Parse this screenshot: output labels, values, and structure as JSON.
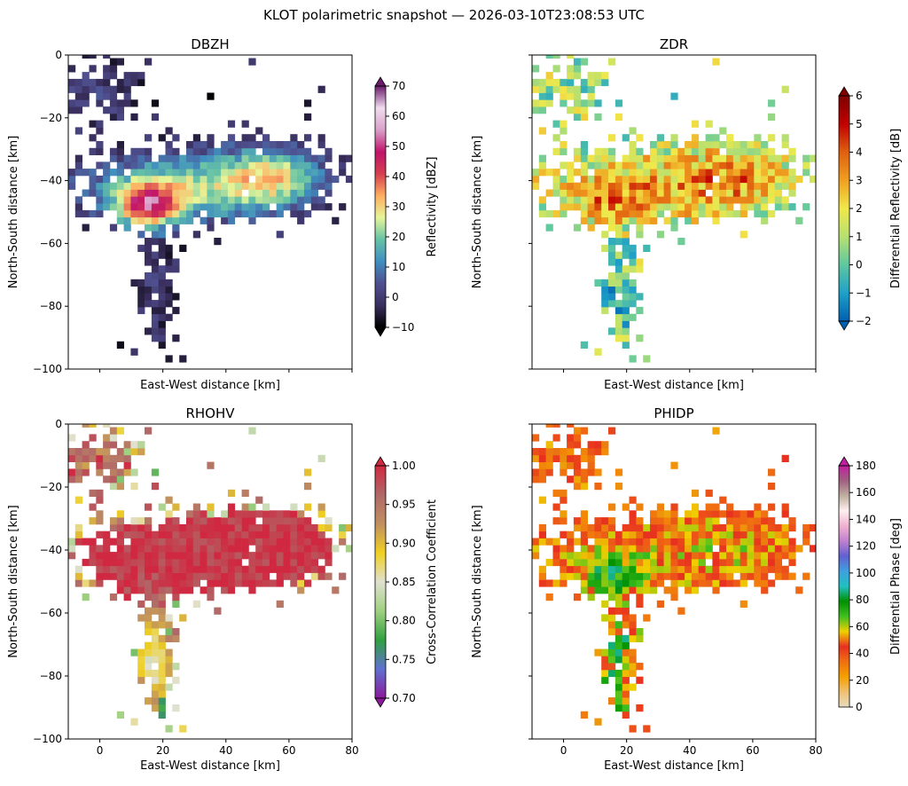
{
  "figure": {
    "suptitle": "KLOT polarimetric snapshot — 2026-03-10T23:08:53 UTC"
  },
  "chart_data": [
    {
      "type": "heatmap",
      "title": "DBZH",
      "xlabel": "East-West distance [km]",
      "ylabel": "North-South distance [km]",
      "xlim": [
        -10,
        80
      ],
      "ylim": [
        -100,
        0
      ],
      "x_ticks": [
        0,
        20,
        40,
        60,
        80
      ],
      "y_ticks": [
        0,
        -20,
        -40,
        -60,
        -80,
        -100
      ],
      "x_tick_labels_shown": false,
      "y_tick_labels_shown": true,
      "colorbar": {
        "label": "Reflectivity [dBZ]",
        "vmin": -10,
        "vmax": 70,
        "ticks": [
          -10,
          0,
          10,
          20,
          30,
          40,
          50,
          60,
          70
        ],
        "extend": "both",
        "colors": [
          "#000000",
          "#3a2f5e",
          "#4f4f8f",
          "#3f8ec0",
          "#66c2a5",
          "#e6f598",
          "#fdae61",
          "#d53e4f",
          "#c0136a",
          "#d9a0c9",
          "#f0dcef",
          "#6a1b6a"
        ]
      },
      "field": "reflectivity"
    },
    {
      "type": "heatmap",
      "title": "ZDR",
      "xlabel": "East-West distance [km]",
      "ylabel": "North-South distance [km]",
      "xlim": [
        -10,
        80
      ],
      "ylim": [
        -100,
        0
      ],
      "x_ticks": [
        0,
        20,
        40,
        60,
        80
      ],
      "y_ticks": [
        0,
        -20,
        -40,
        -60,
        -80,
        -100
      ],
      "x_tick_labels_shown": false,
      "y_tick_labels_shown": false,
      "colorbar": {
        "label": "Differential Reflectivity [dB]",
        "vmin": -2,
        "vmax": 6,
        "ticks": [
          -2,
          -1,
          0,
          1,
          2,
          3,
          4,
          5,
          6
        ],
        "extend": "both",
        "colors": [
          "#0060b0",
          "#1ea0c8",
          "#5ec8a0",
          "#b8e070",
          "#f0e84a",
          "#f0a020",
          "#e06010",
          "#c00000",
          "#800000"
        ]
      },
      "field": "zdr"
    },
    {
      "type": "heatmap",
      "title": "RHOHV",
      "xlabel": "East-West distance [km]",
      "ylabel": "North-South distance [km]",
      "xlim": [
        -10,
        80
      ],
      "ylim": [
        -100,
        0
      ],
      "x_ticks": [
        0,
        20,
        40,
        60,
        80
      ],
      "y_ticks": [
        0,
        -20,
        -40,
        -60,
        -80,
        -100
      ],
      "x_tick_labels_shown": true,
      "y_tick_labels_shown": true,
      "colorbar": {
        "label": "Cross-Correlation Coefficient",
        "vmin": 0.7,
        "vmax": 1.0,
        "ticks": [
          0.7,
          0.75,
          0.8,
          0.85,
          0.9,
          0.95,
          1.0
        ],
        "tick_labels": [
          "0.70",
          "0.75",
          "0.80",
          "0.85",
          "0.90",
          "0.95",
          "1.00"
        ],
        "extend": "both",
        "colors": [
          "#8a1a9a",
          "#6070d0",
          "#30a040",
          "#a0d080",
          "#e0e0d0",
          "#f0d020",
          "#c09060",
          "#b06868",
          "#d02840"
        ]
      },
      "field": "rhohv"
    },
    {
      "type": "heatmap",
      "title": "PHIDP",
      "xlabel": "East-West distance [km]",
      "ylabel": "North-South distance [km]",
      "xlim": [
        -10,
        80
      ],
      "ylim": [
        -100,
        0
      ],
      "x_ticks": [
        0,
        20,
        40,
        60,
        80
      ],
      "y_ticks": [
        0,
        -20,
        -40,
        -60,
        -80,
        -100
      ],
      "x_tick_labels_shown": true,
      "y_tick_labels_shown": false,
      "colorbar": {
        "label": "Differential Phase [deg]",
        "vmin": 0,
        "vmax": 180,
        "ticks": [
          0,
          20,
          40,
          60,
          80,
          100,
          120,
          140,
          160,
          180
        ],
        "extend": "max",
        "colors": [
          "#e8dcc0",
          "#f0c070",
          "#f5a000",
          "#f07010",
          "#e83020",
          "#f0d000",
          "#40c020",
          "#009000",
          "#20c0c0",
          "#40a0e0",
          "#6060d0",
          "#c080d0",
          "#f0b0d0",
          "#fff0f0",
          "#c0b0a0",
          "#a06080",
          "#c020a0"
        ]
      },
      "field": "phidp"
    }
  ]
}
